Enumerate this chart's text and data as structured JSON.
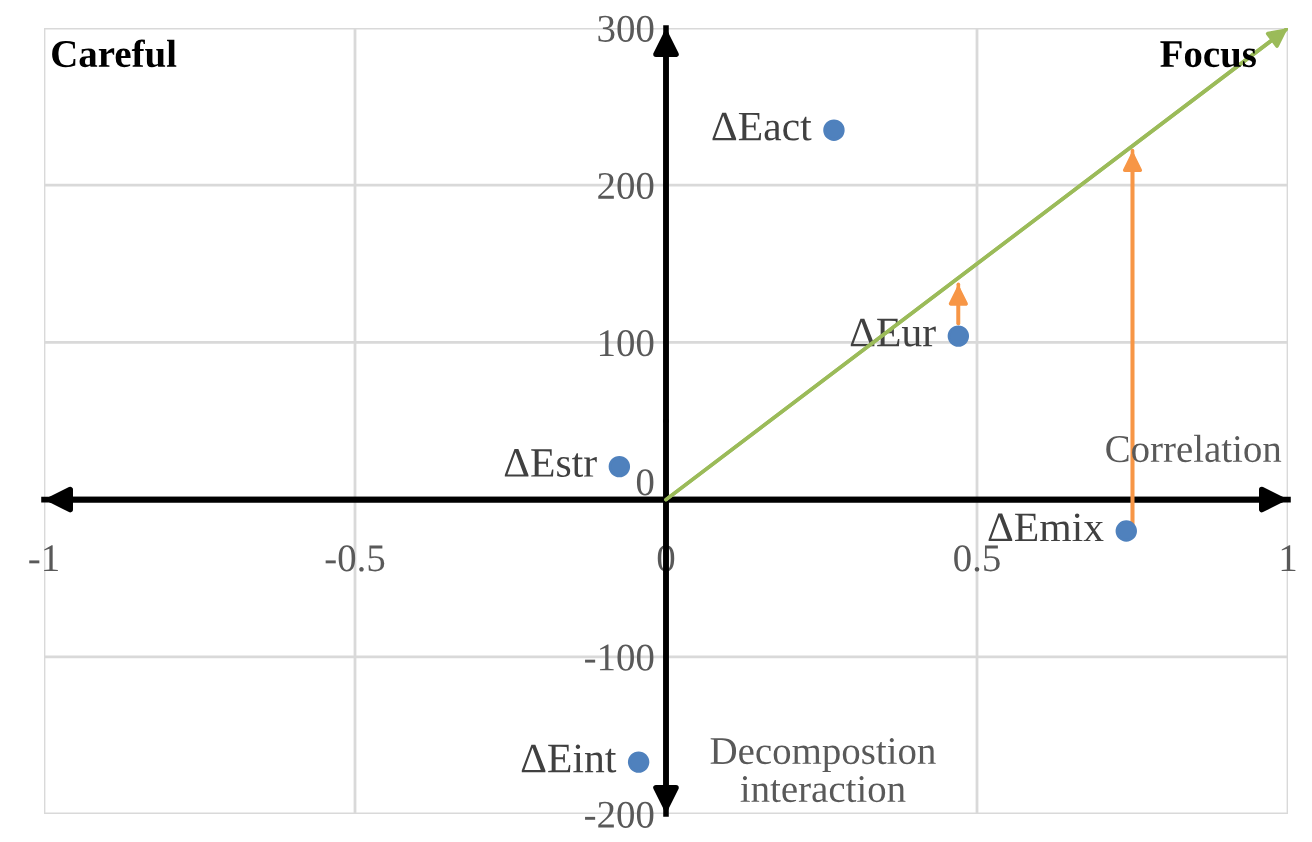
{
  "chart_data": {
    "type": "scatter",
    "xlim": [
      -1,
      1
    ],
    "ylim": [
      -200,
      300
    ],
    "xticks": [
      -1,
      -0.5,
      0,
      0.5,
      1
    ],
    "yticks": [
      -200,
      -100,
      0,
      100,
      200,
      300
    ],
    "grid": true,
    "series": [
      {
        "name": "ΔEact",
        "color": "#4f81bd",
        "x": [
          0.27
        ],
        "values": [
          235
        ],
        "marker": "circle"
      },
      {
        "name": "ΔEur",
        "color": "#4f81bd",
        "x": [
          0.47
        ],
        "values": [
          104
        ],
        "marker": "circle"
      },
      {
        "name": "ΔEstr",
        "color": "#4f81bd",
        "x": [
          -0.075
        ],
        "values": [
          21
        ],
        "marker": "circle"
      },
      {
        "name": "ΔEmix",
        "color": "#4f81bd",
        "x": [
          0.74
        ],
        "values": [
          -20
        ],
        "marker": "circle"
      },
      {
        "name": "ΔEint",
        "color": "#4f81bd",
        "x": [
          -0.044
        ],
        "values": [
          -167
        ],
        "marker": "circle"
      },
      {
        "type": "line",
        "color": "#9bbb59",
        "x": [
          0,
          1
        ],
        "values": [
          0,
          300
        ]
      },
      {
        "type": "line",
        "color": "#f79646",
        "x": [
          0.47,
          0.47
        ],
        "values": [
          112,
          137
        ]
      },
      {
        "type": "line",
        "color": "#f79646",
        "x": [
          0.75,
          0.75
        ],
        "values": [
          -17,
          222
        ]
      }
    ],
    "annotations": [
      "Careful",
      "Focus",
      "Correlation",
      "Decompostion\ninteraction"
    ]
  }
}
